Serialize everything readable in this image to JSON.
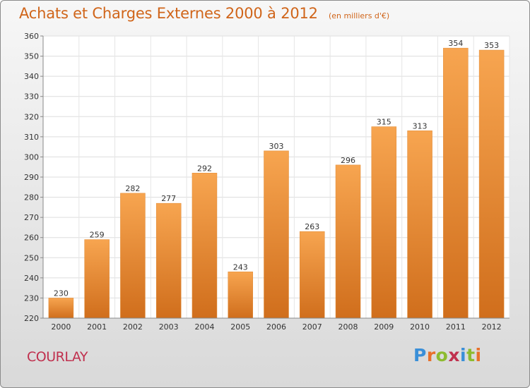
{
  "header": {
    "title": "Achats et Charges Externes 2000 à 2012",
    "subtitle": "(en milliers d'€)"
  },
  "footer": {
    "commune": "COURLAY",
    "brand": "Proxiti",
    "brand_colors": [
      "#3a8fd8",
      "#e8702a",
      "#8dbb2f",
      "#c0304e",
      "#3a8fd8",
      "#8dbb2f",
      "#e8702a"
    ]
  },
  "chart_data": {
    "type": "bar",
    "categories": [
      "2000",
      "2001",
      "2002",
      "2003",
      "2004",
      "2005",
      "2006",
      "2007",
      "2008",
      "2009",
      "2010",
      "2011",
      "2012"
    ],
    "values": [
      230,
      259,
      282,
      277,
      292,
      243,
      303,
      263,
      296,
      315,
      313,
      354,
      353
    ],
    "ylim": [
      220,
      360
    ],
    "yticks": [
      220,
      230,
      240,
      250,
      260,
      270,
      280,
      290,
      300,
      310,
      320,
      330,
      340,
      350,
      360
    ],
    "grid": true,
    "bar_color": "#f0953a",
    "bar_color_dark": "#d0701c"
  }
}
